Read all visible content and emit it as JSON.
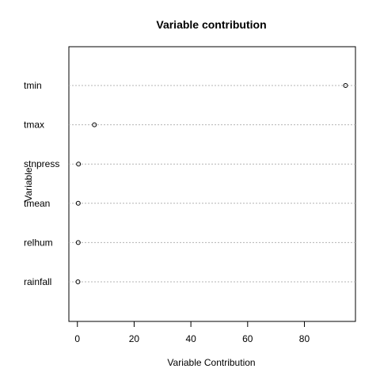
{
  "chart_data": {
    "type": "scatter",
    "title": "Variable contribution",
    "xlabel": "Variable Contribution",
    "ylabel": "Variable",
    "categories": [
      "tmin",
      "tmax",
      "stnpress",
      "tmean",
      "relhum",
      "rainfall"
    ],
    "values": [
      94.5,
      6.0,
      0.4,
      0.3,
      0.3,
      0.2
    ],
    "xlim": [
      -3,
      98
    ],
    "xticks": [
      0,
      20,
      40,
      60,
      80
    ],
    "grid": true
  }
}
